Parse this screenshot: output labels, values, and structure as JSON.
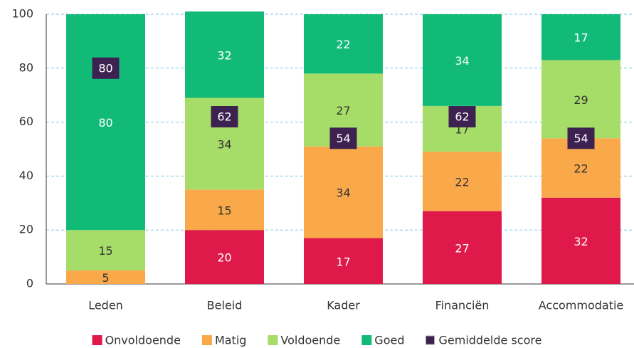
{
  "chart_data": {
    "type": "stacked-bar",
    "categories": [
      "Leden",
      "Beleid",
      "Kader",
      "Financiën",
      "Accommodatie"
    ],
    "series": [
      {
        "name": "Onvoldoende",
        "color": "#e0194b",
        "values": [
          null,
          20,
          17,
          27,
          32
        ]
      },
      {
        "name": "Matig",
        "color": "#f9a84a",
        "values": [
          5,
          15,
          34,
          22,
          22
        ]
      },
      {
        "name": "Voldoende",
        "color": "#a6dd68",
        "values": [
          15,
          34,
          27,
          17,
          29
        ]
      },
      {
        "name": "Goed",
        "color": "#12ba78",
        "values": [
          80,
          32,
          22,
          34,
          17
        ]
      }
    ],
    "average": {
      "name": "Gemiddelde score",
      "color": "#3d2151",
      "values": [
        80,
        62,
        54,
        62,
        54
      ]
    },
    "ylim": [
      0,
      100
    ],
    "yticks": [
      0,
      20,
      40,
      60,
      80,
      100
    ],
    "grid": true,
    "legend": "bottom"
  }
}
